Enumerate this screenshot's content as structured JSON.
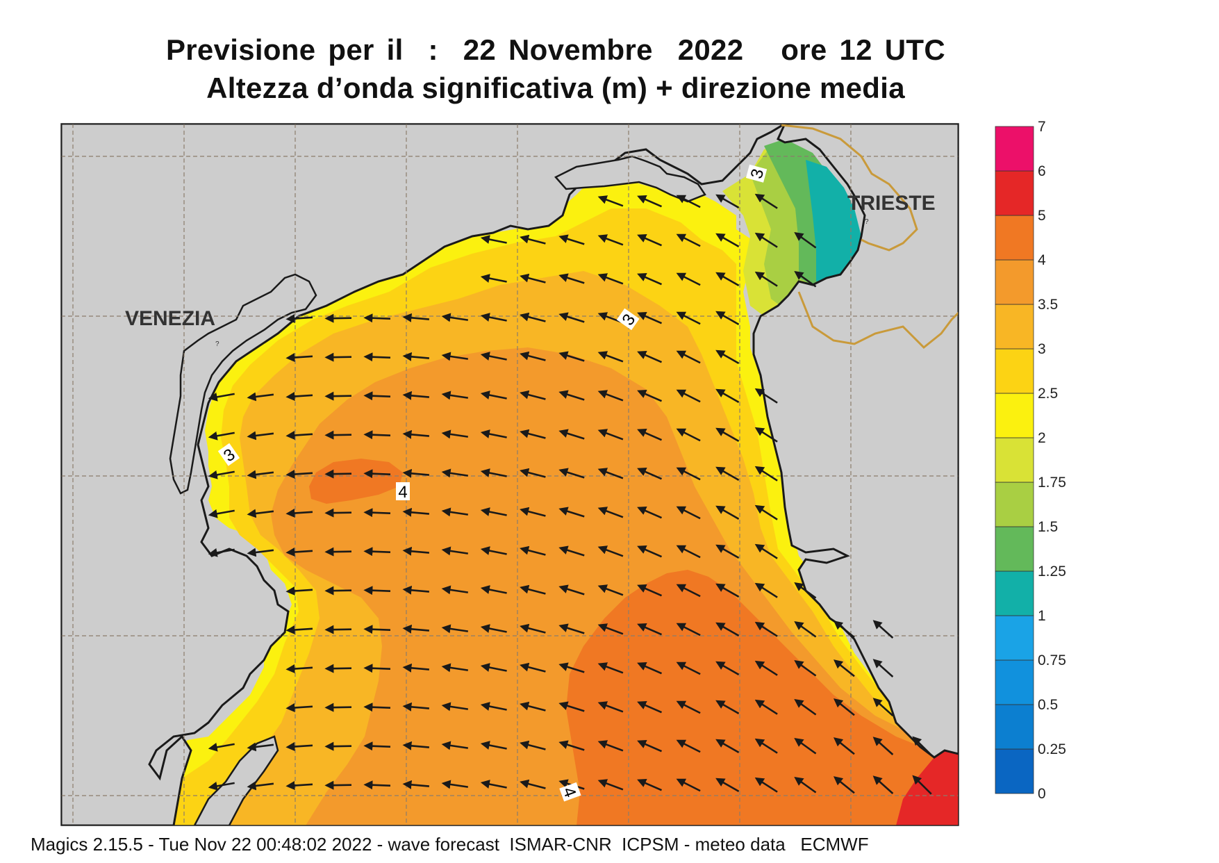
{
  "header": {
    "line1": "Previsione per il  :  22 Novembre  2022   ore 12 UTC",
    "line2": "Altezza d’onda significativa (m) + direzione media"
  },
  "map": {
    "cities": {
      "venezia": "VENEZIA",
      "trieste": "TRIESTE"
    },
    "contour_labels": [
      "3",
      "3",
      "3",
      "4",
      "4"
    ],
    "sea_color_mid": "#f3a43c",
    "land_color": "#cdcdcd",
    "coast_color": "#1a1a1a",
    "border_color": "#c99a3a",
    "arrow_color": "#1a1a1a"
  },
  "colorbar": {
    "levels": [
      "0",
      "0.25",
      "0.5",
      "0.75",
      "1",
      "1.25",
      "1.5",
      "1.75",
      "2",
      "2.5",
      "3",
      "3.5",
      "4",
      "5",
      "6",
      "7"
    ],
    "colors": [
      "#0a66c2",
      "#0c7fd0",
      "#1191dd",
      "#1aa3e6",
      "#12b0a8",
      "#63b95a",
      "#a9cf43",
      "#d9e236",
      "#fbf10f",
      "#fcd314",
      "#f8b625",
      "#f39a2c",
      "#f07823",
      "#e52727",
      "#ec1069"
    ]
  },
  "footer": {
    "text": "Magics 2.15.5 - Tue Nov 22 00:48:02 2022 - wave forecast  ISMAR-CNR  ICPSM - meteo data   ECMWF"
  }
}
